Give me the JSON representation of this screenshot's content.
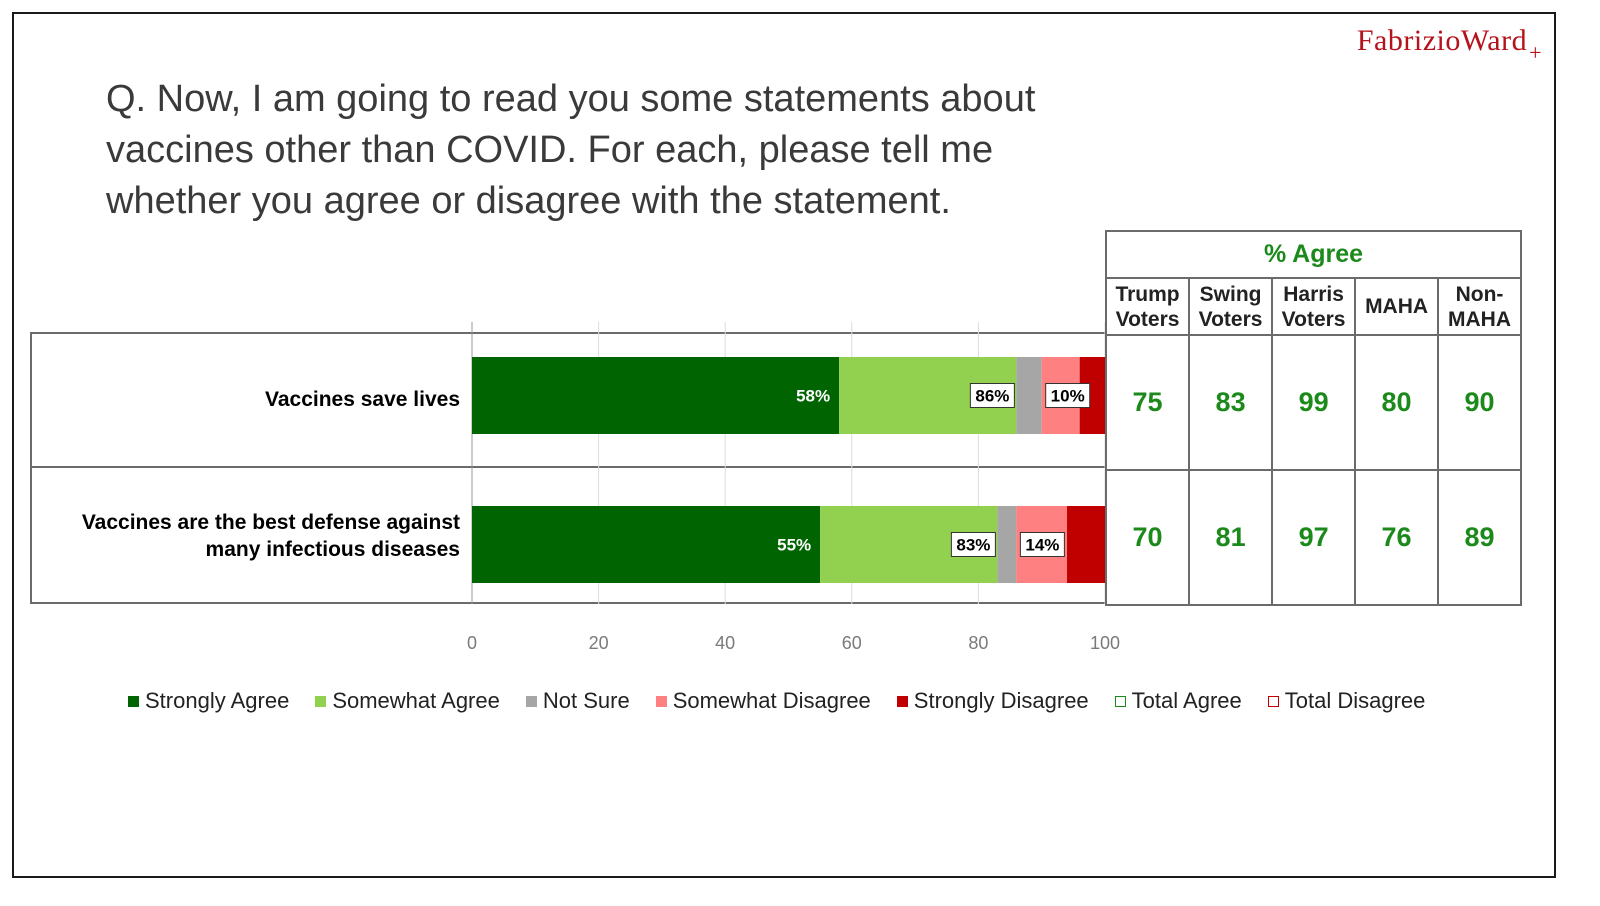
{
  "logo": {
    "text": "FabrizioWard",
    "plus": "+"
  },
  "question": "Q. Now, I am going to read you some statements about\nvaccines other than COVID. For each, please tell me\nwhether you agree or disagree with the statement.",
  "colors": {
    "strongly_agree": "#006400",
    "somewhat_agree": "#92d050",
    "not_sure": "#a6a6a6",
    "somewhat_disagree": "#ff8080",
    "strongly_disagree": "#c00000",
    "agree_text": "#1b8a1b"
  },
  "chart_data": {
    "type": "bar",
    "orientation": "horizontal-stacked",
    "categories": [
      "Vaccines save lives",
      "Vaccines are the best defense against many infectious diseases"
    ],
    "category_lines": [
      [
        "Vaccines save lives"
      ],
      [
        "Vaccines are the best defense against",
        "many infectious diseases"
      ]
    ],
    "series": [
      {
        "name": "Strongly Agree",
        "color": "#006400",
        "values": [
          58,
          55
        ]
      },
      {
        "name": "Somewhat Agree",
        "color": "#92d050",
        "values": [
          28,
          28
        ]
      },
      {
        "name": "Not Sure",
        "color": "#a6a6a6",
        "values": [
          4,
          3
        ]
      },
      {
        "name": "Somewhat Disagree",
        "color": "#ff8080",
        "values": [
          6,
          8
        ]
      },
      {
        "name": "Strongly Disagree",
        "color": "#c00000",
        "values": [
          4,
          6
        ]
      }
    ],
    "strongly_agree_labels": [
      "58%",
      "55%"
    ],
    "total_agree": [
      86,
      83
    ],
    "total_agree_labels": [
      "86%",
      "83%"
    ],
    "total_disagree": [
      10,
      14
    ],
    "total_disagree_labels": [
      "10%",
      "14%"
    ],
    "xlim": [
      0,
      100
    ],
    "xticks": [
      0,
      20,
      40,
      60,
      80,
      100
    ],
    "grid": true,
    "legend": [
      "Strongly Agree",
      "Somewhat Agree",
      "Not Sure",
      "Somewhat Disagree",
      "Strongly Disagree",
      "Total Agree",
      "Total Disagree"
    ],
    "legend_position": "bottom"
  },
  "agree_table": {
    "title": "% Agree",
    "columns": [
      [
        "Trump",
        "Voters"
      ],
      [
        "Swing",
        "Voters"
      ],
      [
        "Harris",
        "Voters"
      ],
      [
        "MAHA"
      ],
      [
        "Non-",
        "MAHA"
      ]
    ],
    "rows": [
      [
        "75",
        "83",
        "99",
        "80",
        "90"
      ],
      [
        "70",
        "81",
        "97",
        "76",
        "89"
      ]
    ]
  },
  "legend_items": [
    {
      "label": "Strongly Agree",
      "color": "#006400",
      "hollow": false
    },
    {
      "label": "Somewhat Agree",
      "color": "#92d050",
      "hollow": false
    },
    {
      "label": "Not Sure",
      "color": "#a6a6a6",
      "hollow": false
    },
    {
      "label": "Somewhat Disagree",
      "color": "#ff8080",
      "hollow": false
    },
    {
      "label": "Strongly Disagree",
      "color": "#c00000",
      "hollow": false
    },
    {
      "label": "Total Agree",
      "color": "#1b8a1b",
      "hollow": true
    },
    {
      "label": "Total Disagree",
      "color": "#c00000",
      "hollow": true
    }
  ]
}
